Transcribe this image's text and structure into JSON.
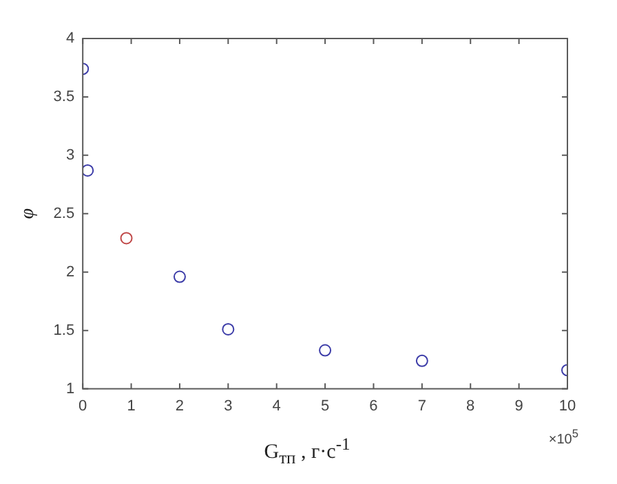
{
  "chart_data": {
    "type": "scatter",
    "xlabel": "G$_{тп}$ , г·с$^{-1}$",
    "ylabel": "φ",
    "annotations": [
      "×10$^{5}$"
    ],
    "marker": "circle",
    "series": [
      {
        "color": "#3c3ca8",
        "x": [
          0.0,
          0.1,
          2,
          3,
          5,
          7,
          10
        ],
        "values": [
          3.74,
          2.87,
          1.96,
          1.51,
          1.33,
          1.24,
          1.16
        ]
      },
      {
        "color": "#c04848",
        "x": [
          0.9
        ],
        "values": [
          2.29
        ]
      }
    ],
    "xlim": [
      0,
      10
    ],
    "xticks": [
      0,
      1,
      2,
      3,
      4,
      5,
      6,
      7,
      8,
      9,
      10
    ],
    "ylim": [
      1,
      4
    ],
    "yticks": [
      1,
      1.5,
      2,
      2.5,
      3,
      3.5,
      4
    ]
  }
}
